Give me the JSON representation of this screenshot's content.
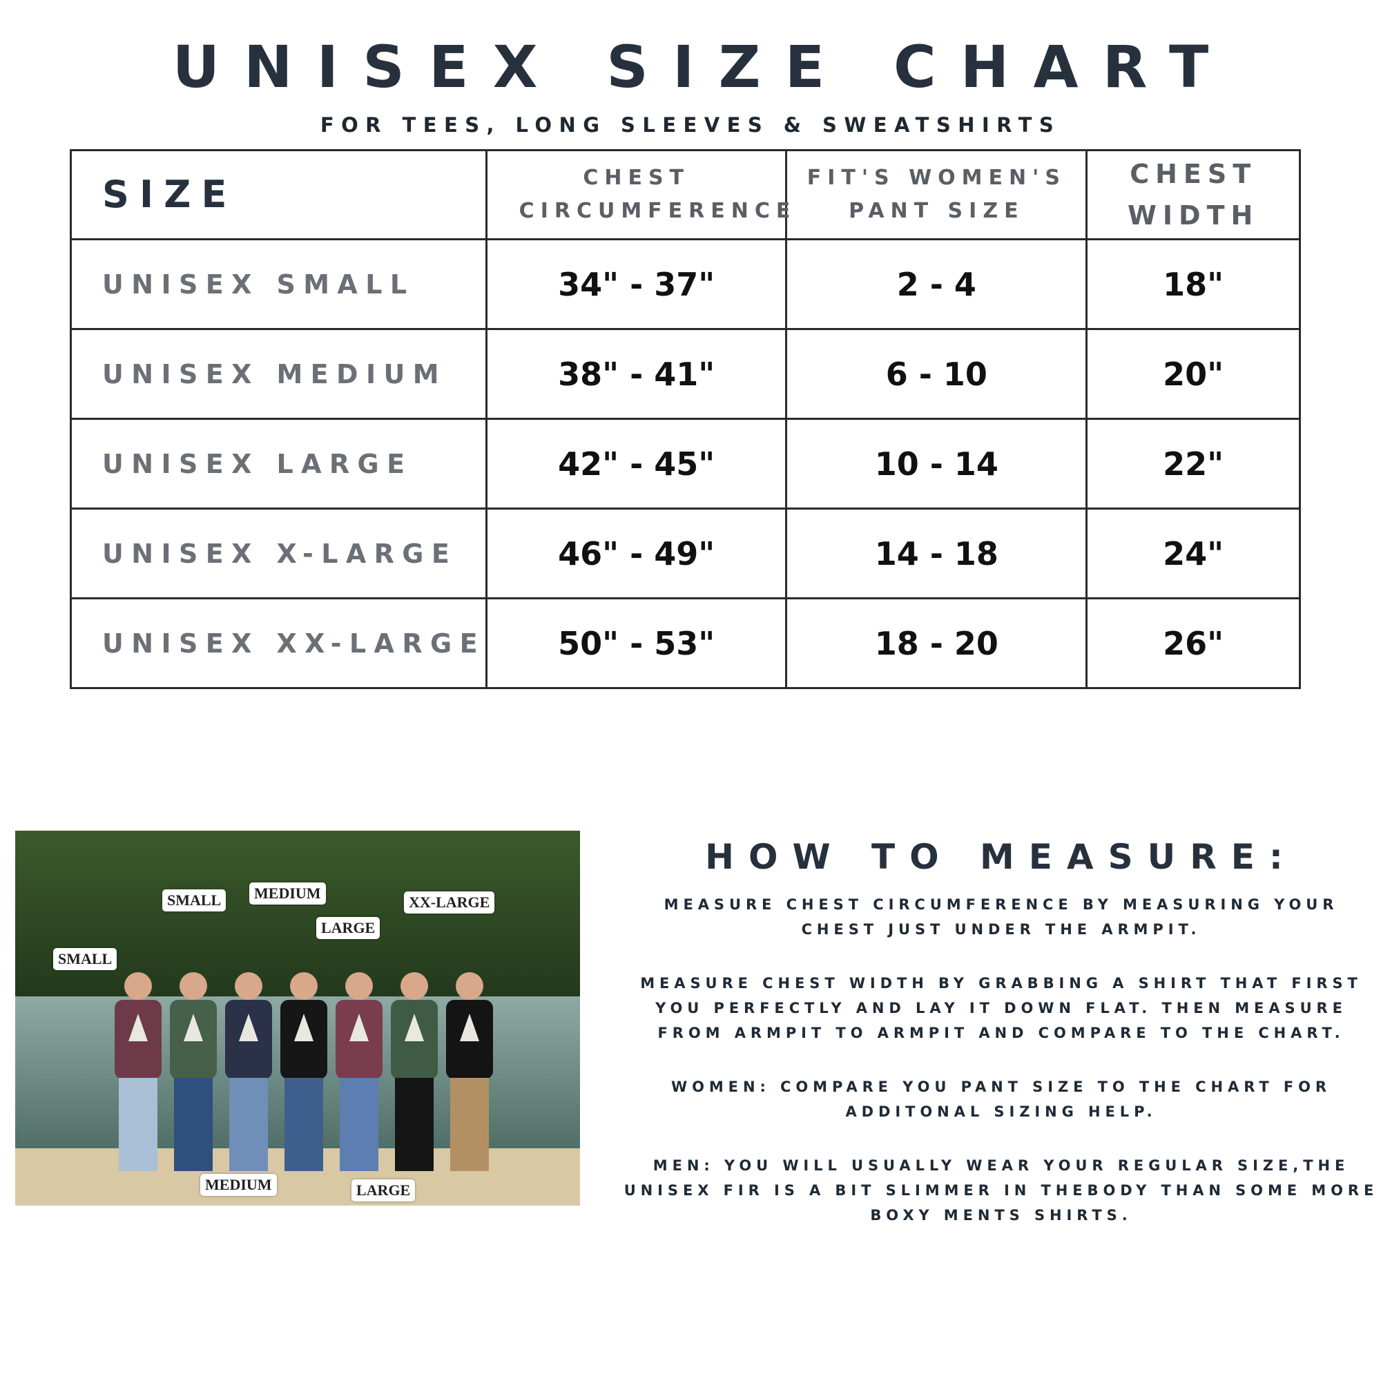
{
  "header": {
    "title": "UNISEX SIZE CHART",
    "subtitle": "FOR TEES, LONG SLEEVES & SWEATSHIRTS"
  },
  "table": {
    "columns": [
      "SIZE",
      "CHEST CIRCUMFERENCE",
      "FIT'S WOMEN'S PANT SIZE",
      "CHEST WIDTH"
    ],
    "rows": [
      [
        "UNISEX SMALL",
        "34\" - 37\"",
        "2 - 4",
        "18\""
      ],
      [
        "UNISEX MEDIUM",
        "38\" - 41\"",
        "6 - 10",
        "20\""
      ],
      [
        "UNISEX LARGE",
        "42\" - 45\"",
        "10 - 14",
        "22\""
      ],
      [
        "UNISEX X-LARGE",
        "46\" - 49\"",
        "14 - 18",
        "24\""
      ],
      [
        "UNISEX XX-LARGE",
        "50\" - 53\"",
        "18 - 20",
        "26\""
      ]
    ]
  },
  "photo": {
    "labels": [
      "SMALL",
      "SMALL",
      "MEDIUM",
      "LARGE",
      "XX-LARGE",
      "MEDIUM",
      "LARGE"
    ]
  },
  "measure": {
    "title": "HOW TO MEASURE:",
    "paragraphs": [
      "MEASURE CHEST CIRCUMFERENCE BY MEASURING YOUR CHEST JUST UNDER THE ARMPIT.",
      "MEASURE CHEST WIDTH BY GRABBING A SHIRT THAT FIRST YOU PERFECTLY AND LAY IT DOWN FLAT. THEN MEASURE FROM ARMPIT TO ARMPIT AND COMPARE TO THE CHART.",
      "WOMEN: COMPARE YOU PANT SIZE TO THE CHART FOR ADDITONAL SIZING HELP.",
      "MEN: YOU WILL USUALLY WEAR YOUR REGULAR SIZE,THE UNISEX FIR IS A BIT SLIMMER IN THEBODY THAN SOME MORE BOXY MENTS SHIRTS."
    ]
  },
  "colors": {
    "heading": "#26313d",
    "label_gray": "#6b7076",
    "border": "#2a2a2a"
  }
}
